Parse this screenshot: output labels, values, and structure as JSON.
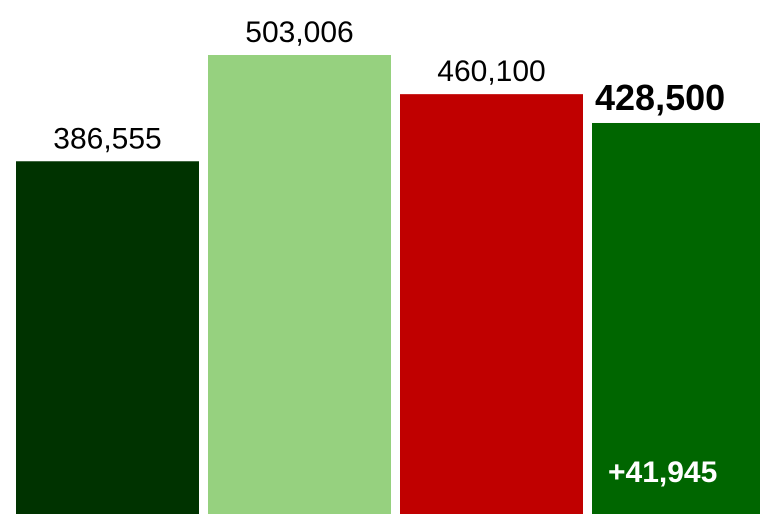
{
  "chart_data": {
    "type": "bar",
    "categories": [
      "",
      "",
      "",
      ""
    ],
    "values": [
      386555,
      503006,
      460100,
      428500
    ],
    "value_labels": [
      "386,555",
      "503,006",
      "460,100",
      "428,500"
    ],
    "highlight_index": 3,
    "annotation": "+41,945",
    "bar_colors": [
      "#003300",
      "#96d17f",
      "#c00000",
      "#006600"
    ],
    "label_color": "#000000",
    "annotation_color": "#ffffff",
    "title": "",
    "xlabel": "",
    "ylabel": "",
    "ylim": [
      0,
      503006
    ],
    "grid": false,
    "legend": "none"
  }
}
